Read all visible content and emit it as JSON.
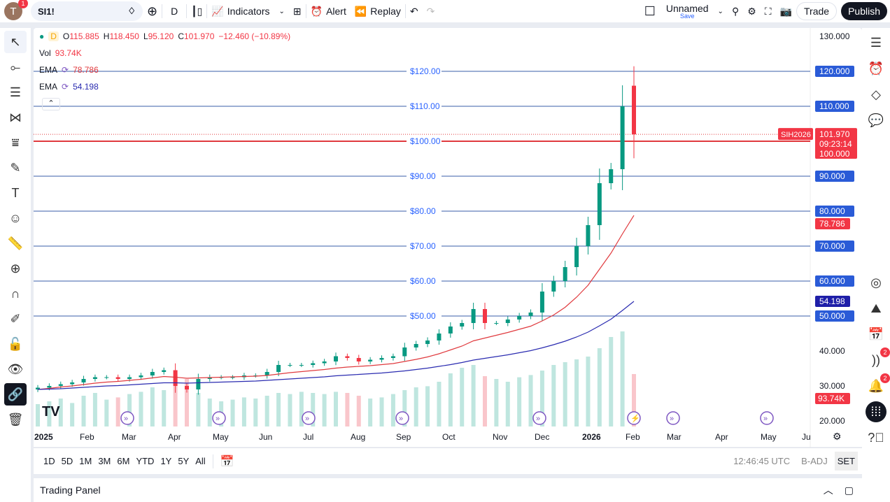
{
  "toolbar": {
    "avatar": "T",
    "avatar_badge": "1",
    "symbol": "SI1!",
    "interval": "D",
    "indicators": "Indicators",
    "alert": "Alert",
    "replay": "Replay",
    "layout_name": "Unnamed",
    "layout_save": "Save",
    "trade": "Trade",
    "publish": "Publish"
  },
  "legend": {
    "interval": "D",
    "o_label": "O",
    "o": "115.885",
    "h_label": "H",
    "h": "118.450",
    "l_label": "L",
    "l": "95.120",
    "c_label": "C",
    "c": "101.970",
    "change": "−12.460 (−10.89%)",
    "vol_label": "Vol",
    "vol": "93.74K",
    "ema1_label": "EMA",
    "ema1": "78.786",
    "ema2_label": "EMA",
    "ema2": "54.198"
  },
  "price_tags": {
    "symbol": "SIH2026",
    "last": "101.970",
    "countdown": "09:23:14",
    "alert_level": "100.000",
    "ema1": "78.786",
    "ema2": "54.198",
    "volume": "93.74K"
  },
  "colors": {
    "up": "#089981",
    "down": "#f23645",
    "ema1": "#e03a3e",
    "ema2": "#2a2bb0",
    "hline": "#2962ff"
  },
  "right_panel": {
    "chat_badge": "2",
    "alert_badge": "2"
  },
  "bottom": {
    "ranges": [
      "1D",
      "5D",
      "1M",
      "3M",
      "6M",
      "YTD",
      "1Y",
      "5Y",
      "All"
    ],
    "time": "12:46:45 UTC",
    "adj": "B-ADJ",
    "session": "SET"
  },
  "trading_panel": "Trading Panel",
  "chart_data": {
    "type": "candlestick",
    "symbol": "SI1!",
    "ylim": [
      17,
      133
    ],
    "y_ticks": [
      "130.000",
      "120.000",
      "110.000",
      "100.000",
      "90.000",
      "80.000",
      "70.000",
      "60.000",
      "50.000",
      "40.000",
      "30.000",
      "20.000"
    ],
    "y_tick_values": [
      130,
      120,
      110,
      100,
      90,
      80,
      70,
      60,
      50,
      40,
      30,
      20
    ],
    "x_labels": [
      "2025",
      "Feb",
      "Mar",
      "Apr",
      "May",
      "Jun",
      "Jul",
      "Aug",
      "Sep",
      "Oct",
      "Nov",
      "Dec",
      "2026",
      "Feb",
      "Mar",
      "Apr",
      "May",
      "Ju"
    ],
    "hlines": [
      {
        "value": 120,
        "label": "$120.00"
      },
      {
        "value": 110,
        "label": "$110.00"
      },
      {
        "value": 100,
        "label": "$100.00"
      },
      {
        "value": 90,
        "label": "$90.00"
      },
      {
        "value": 80,
        "label": "$80.00"
      },
      {
        "value": 70,
        "label": "$70.00"
      },
      {
        "value": 60,
        "label": "$60.00"
      },
      {
        "value": 50,
        "label": "$50.00"
      }
    ],
    "weekly_close": [
      29.5,
      30,
      30.5,
      31,
      32,
      32.5,
      32.5,
      32,
      32.5,
      33,
      34,
      34.5,
      30,
      29,
      32,
      32.5,
      32.5,
      32.5,
      33,
      33,
      34,
      36,
      36,
      36,
      36.5,
      37,
      38.5,
      38,
      37,
      37.5,
      38,
      38.5,
      41,
      42,
      43,
      45,
      47,
      48,
      52,
      48,
      48,
      49,
      50,
      51,
      57,
      60,
      64,
      70,
      76,
      88,
      92,
      110,
      101.97
    ],
    "ema_fast": [
      29,
      29.3,
      29.7,
      30,
      30.4,
      30.8,
      31.1,
      31.3,
      31.6,
      31.9,
      32.3,
      32.7,
      32.5,
      32.2,
      32.3,
      32.4,
      32.5,
      32.6,
      32.7,
      32.8,
      33,
      33.4,
      33.8,
      34.1,
      34.4,
      34.7,
      35.1,
      35.4,
      35.6,
      35.8,
      36.1,
      36.4,
      37,
      37.6,
      38.3,
      39.2,
      40.3,
      41.4,
      42.9,
      43.7,
      44.5,
      45.3,
      46.2,
      47.1,
      48.6,
      50.3,
      52.5,
      55.4,
      58.8,
      63.4,
      68,
      73.5,
      78.786
    ],
    "ema_slow": [
      29,
      29.1,
      29.2,
      29.4,
      29.6,
      29.8,
      30,
      30.1,
      30.3,
      30.5,
      30.7,
      30.9,
      30.9,
      30.8,
      30.9,
      31,
      31.1,
      31.2,
      31.3,
      31.4,
      31.6,
      31.8,
      32,
      32.2,
      32.4,
      32.6,
      32.9,
      33.1,
      33.3,
      33.5,
      33.7,
      34,
      34.3,
      34.7,
      35.1,
      35.6,
      36.1,
      36.7,
      37.4,
      37.9,
      38.4,
      38.9,
      39.5,
      40.1,
      40.9,
      41.8,
      42.8,
      44,
      45.4,
      47.2,
      49.1,
      51.6,
      54.198
    ],
    "volume_k": [
      40,
      45,
      50,
      42,
      55,
      60,
      48,
      52,
      58,
      62,
      70,
      65,
      90,
      85,
      60,
      50,
      45,
      48,
      52,
      50,
      55,
      60,
      58,
      62,
      60,
      58,
      62,
      60,
      55,
      50,
      52,
      58,
      65,
      70,
      72,
      80,
      95,
      105,
      110,
      90,
      85,
      80,
      88,
      92,
      100,
      110,
      115,
      120,
      125,
      140,
      160,
      170,
      93.74
    ],
    "last_candle": {
      "o": 115.885,
      "h": 118.45,
      "l": 95.12,
      "c": 101.97
    }
  }
}
